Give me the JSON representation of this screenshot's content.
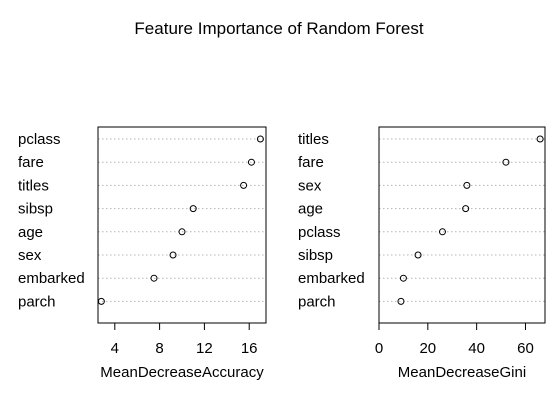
{
  "title": "Feature Importance of Random Forest",
  "chart_data": [
    {
      "type": "scatter",
      "subtype": "dotchart",
      "xlabel": "MeanDecreaseAccuracy",
      "categories": [
        "pclass",
        "fare",
        "titles",
        "sibsp",
        "age",
        "sex",
        "embarked",
        "parch"
      ],
      "values": [
        17.0,
        16.2,
        15.5,
        11.0,
        10.0,
        9.2,
        7.5,
        2.8
      ],
      "xlim": [
        2.5,
        17.5
      ],
      "xticks": [
        4,
        8,
        12,
        16
      ],
      "grid": "dotted-horizontal"
    },
    {
      "type": "scatter",
      "subtype": "dotchart",
      "xlabel": "MeanDecreaseGini",
      "categories": [
        "titles",
        "fare",
        "sex",
        "age",
        "pclass",
        "sibsp",
        "embarked",
        "parch"
      ],
      "values": [
        66,
        52,
        36,
        35.5,
        26,
        16,
        10,
        9
      ],
      "xlim": [
        0,
        68
      ],
      "xticks": [
        0,
        20,
        40,
        60
      ],
      "grid": "dotted-horizontal"
    }
  ]
}
